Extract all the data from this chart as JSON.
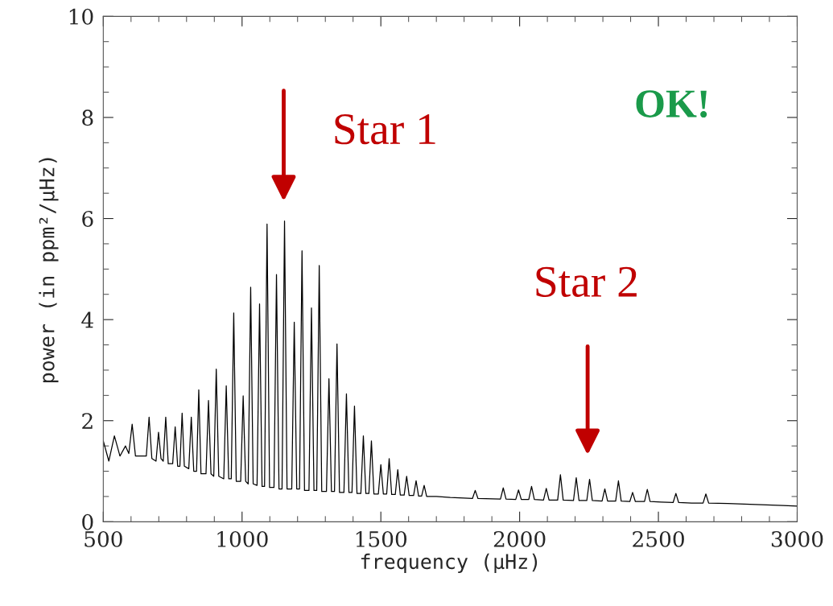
{
  "chart_data": {
    "type": "line",
    "xlabel": "frequency (μHz)",
    "ylabel": "power (in ppm²/μHz)",
    "xlim": [
      500,
      3000
    ],
    "ylim": [
      0,
      10
    ],
    "xticks": [
      500,
      1000,
      1500,
      2000,
      2500,
      3000
    ],
    "yticks": [
      0,
      2,
      4,
      6,
      8,
      10
    ],
    "grid": false,
    "legend": false,
    "marker": "none",
    "line_style": "solid",
    "series": [
      {
        "color": "#000000",
        "x": [
          500,
          520,
          540,
          560,
          580,
          592,
          604,
          616,
          655,
          665,
          675,
          690,
          699,
          708,
          716,
          725,
          734,
          750,
          759,
          768,
          776,
          784,
          792,
          808,
          817,
          826,
          836,
          844,
          852,
          870,
          879,
          888,
          898,
          907,
          916,
          934,
          943,
          952,
          961,
          970,
          979,
          995,
          1004,
          1013,
          1022,
          1031,
          1040,
          1054,
          1063,
          1072,
          1081,
          1090,
          1099,
          1115,
          1124,
          1133,
          1144,
          1153,
          1162,
          1179,
          1188,
          1197,
          1207,
          1216,
          1225,
          1241,
          1250,
          1259,
          1269,
          1278,
          1287,
          1304,
          1313,
          1322,
          1333,
          1342,
          1351,
          1367,
          1376,
          1385,
          1396,
          1405,
          1414,
          1428,
          1437,
          1446,
          1457,
          1466,
          1475,
          1491,
          1500,
          1509,
          1521,
          1530,
          1539,
          1552,
          1561,
          1570,
          1584,
          1593,
          1602,
          1618,
          1627,
          1636,
          1647,
          1656,
          1665,
          1700,
          1750,
          1800,
          1830,
          1840,
          1850,
          1931,
          1941,
          1951,
          1986,
          1996,
          2006,
          2033,
          2043,
          2053,
          2086,
          2096,
          2106,
          2137,
          2147,
          2157,
          2194,
          2204,
          2214,
          2242,
          2252,
          2262,
          2297,
          2307,
          2317,
          2346,
          2356,
          2366,
          2397,
          2407,
          2417,
          2450,
          2460,
          2470,
          2510,
          2553,
          2563,
          2573,
          2620,
          2661,
          2671,
          2681,
          2750,
          2850,
          2950,
          3000
        ],
        "values": [
          1.6,
          1.2,
          1.7,
          1.3,
          1.5,
          1.35,
          1.93,
          1.3,
          1.3,
          2.07,
          1.25,
          1.2,
          1.77,
          1.25,
          1.2,
          2.07,
          1.15,
          1.15,
          1.88,
          1.1,
          1.1,
          2.15,
          1.1,
          1.05,
          2.07,
          1.0,
          1.0,
          2.61,
          0.95,
          0.95,
          2.4,
          0.95,
          0.9,
          3.02,
          0.9,
          0.85,
          2.69,
          0.85,
          0.85,
          4.13,
          0.8,
          0.8,
          2.49,
          0.8,
          0.75,
          4.64,
          0.75,
          0.72,
          4.31,
          0.7,
          0.7,
          5.89,
          0.68,
          0.68,
          4.89,
          0.65,
          0.65,
          5.95,
          0.65,
          0.65,
          3.95,
          0.65,
          0.65,
          5.36,
          0.62,
          0.62,
          4.23,
          0.62,
          0.62,
          5.07,
          0.6,
          0.6,
          2.83,
          0.6,
          0.6,
          3.52,
          0.58,
          0.58,
          2.53,
          0.58,
          0.58,
          2.29,
          0.56,
          0.56,
          1.7,
          0.56,
          0.56,
          1.6,
          0.55,
          0.55,
          1.13,
          0.55,
          0.55,
          1.25,
          0.54,
          0.54,
          1.03,
          0.53,
          0.53,
          0.9,
          0.52,
          0.52,
          0.81,
          0.51,
          0.51,
          0.72,
          0.5,
          0.5,
          0.48,
          0.47,
          0.46,
          0.62,
          0.46,
          0.45,
          0.67,
          0.45,
          0.44,
          0.63,
          0.44,
          0.44,
          0.7,
          0.44,
          0.43,
          0.66,
          0.43,
          0.43,
          0.93,
          0.43,
          0.42,
          0.87,
          0.42,
          0.42,
          0.84,
          0.42,
          0.41,
          0.65,
          0.41,
          0.41,
          0.81,
          0.41,
          0.4,
          0.58,
          0.4,
          0.4,
          0.64,
          0.4,
          0.39,
          0.38,
          0.56,
          0.38,
          0.37,
          0.37,
          0.55,
          0.37,
          0.36,
          0.34,
          0.32,
          0.31
        ]
      }
    ],
    "annotations": [
      "Star 1",
      "Star 2",
      "OK!"
    ]
  }
}
